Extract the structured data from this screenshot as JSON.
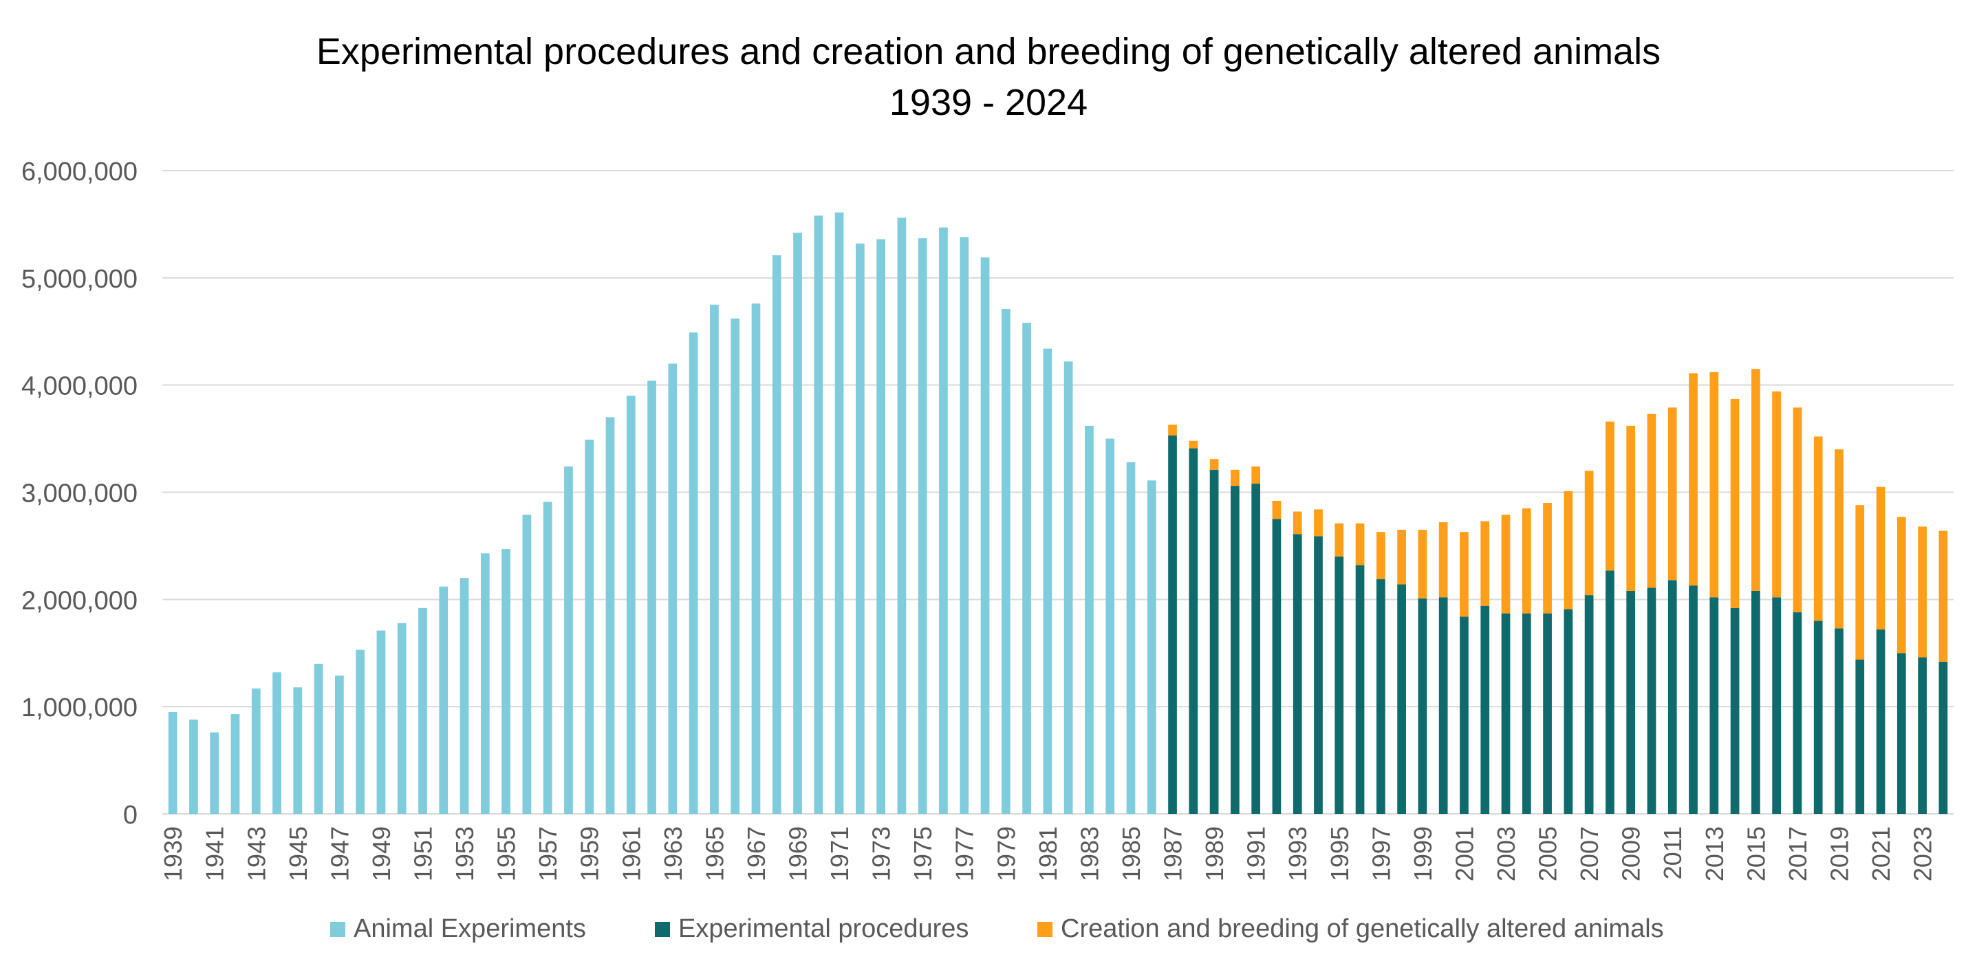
{
  "chart_data": {
    "type": "bar",
    "stacked": true,
    "title": "Experimental procedures and creation and breeding of genetically altered animals",
    "subtitle": "1939 - 2024",
    "xlabel": "",
    "ylabel": "",
    "ylim": [
      0,
      6000000
    ],
    "yticks": [
      0,
      1000000,
      2000000,
      3000000,
      4000000,
      5000000,
      6000000
    ],
    "ytick_labels": [
      "0",
      "1,000,000",
      "2,000,000",
      "3,000,000",
      "4,000,000",
      "5,000,000",
      "6,000,000"
    ],
    "grid": true,
    "legend_position": "bottom",
    "x": [
      1939,
      1940,
      1941,
      1942,
      1943,
      1944,
      1945,
      1946,
      1947,
      1948,
      1949,
      1950,
      1951,
      1952,
      1953,
      1954,
      1955,
      1956,
      1957,
      1958,
      1959,
      1960,
      1961,
      1962,
      1963,
      1964,
      1965,
      1966,
      1967,
      1968,
      1969,
      1970,
      1971,
      1972,
      1973,
      1974,
      1975,
      1976,
      1977,
      1978,
      1979,
      1980,
      1981,
      1982,
      1983,
      1984,
      1985,
      1986,
      1987,
      1988,
      1989,
      1990,
      1991,
      1992,
      1993,
      1994,
      1995,
      1996,
      1997,
      1998,
      1999,
      2000,
      2001,
      2002,
      2003,
      2004,
      2005,
      2006,
      2007,
      2008,
      2009,
      2010,
      2011,
      2012,
      2013,
      2014,
      2015,
      2016,
      2017,
      2018,
      2019,
      2020,
      2021,
      2022,
      2023,
      2024
    ],
    "x_tick_labels": [
      "1939",
      "1941",
      "1943",
      "1945",
      "1947",
      "1949",
      "1951",
      "1953",
      "1955",
      "1957",
      "1959",
      "1961",
      "1963",
      "1965",
      "1967",
      "1969",
      "1971",
      "1973",
      "1975",
      "1977",
      "1979",
      "1981",
      "1983",
      "1985",
      "1987",
      "1989",
      "1991",
      "1993",
      "1995",
      "1997",
      "1999",
      "2001",
      "2003",
      "2005",
      "2007",
      "2009",
      "2011",
      "2013",
      "2015",
      "2017",
      "2019",
      "2021",
      "2023"
    ],
    "series": [
      {
        "name": "Animal Experiments",
        "color": "#7FCCDC",
        "values": [
          950000,
          880000,
          760000,
          930000,
          1170000,
          1320000,
          1180000,
          1400000,
          1290000,
          1530000,
          1710000,
          1780000,
          1920000,
          2120000,
          2200000,
          2430000,
          2470000,
          2790000,
          2910000,
          3240000,
          3490000,
          3700000,
          3900000,
          4040000,
          4200000,
          4490000,
          4750000,
          4620000,
          4760000,
          5210000,
          5420000,
          5580000,
          5610000,
          5320000,
          5360000,
          5560000,
          5370000,
          5470000,
          5380000,
          5190000,
          4710000,
          4580000,
          4340000,
          4220000,
          3620000,
          3500000,
          3280000,
          3110000,
          0,
          0,
          0,
          0,
          0,
          0,
          0,
          0,
          0,
          0,
          0,
          0,
          0,
          0,
          0,
          0,
          0,
          0,
          0,
          0,
          0,
          0,
          0,
          0,
          0,
          0,
          0,
          0,
          0,
          0,
          0,
          0,
          0,
          0,
          0,
          0,
          0,
          0
        ]
      },
      {
        "name": "Experimental procedures",
        "color": "#0E6A6B",
        "values": [
          0,
          0,
          0,
          0,
          0,
          0,
          0,
          0,
          0,
          0,
          0,
          0,
          0,
          0,
          0,
          0,
          0,
          0,
          0,
          0,
          0,
          0,
          0,
          0,
          0,
          0,
          0,
          0,
          0,
          0,
          0,
          0,
          0,
          0,
          0,
          0,
          0,
          0,
          0,
          0,
          0,
          0,
          0,
          0,
          0,
          0,
          0,
          0,
          3530000,
          3410000,
          3210000,
          3060000,
          3080000,
          2750000,
          2610000,
          2590000,
          2400000,
          2320000,
          2190000,
          2140000,
          2010000,
          2020000,
          1840000,
          1940000,
          1870000,
          1870000,
          1870000,
          1910000,
          2040000,
          2270000,
          2080000,
          2110000,
          2180000,
          2130000,
          2020000,
          1920000,
          2080000,
          2020000,
          1880000,
          1800000,
          1730000,
          1440000,
          1720000,
          1500000,
          1460000,
          1420000
        ]
      },
      {
        "name": "Creation and breeding of genetically altered animals",
        "color": "#FF9E18",
        "values": [
          0,
          0,
          0,
          0,
          0,
          0,
          0,
          0,
          0,
          0,
          0,
          0,
          0,
          0,
          0,
          0,
          0,
          0,
          0,
          0,
          0,
          0,
          0,
          0,
          0,
          0,
          0,
          0,
          0,
          0,
          0,
          0,
          0,
          0,
          0,
          0,
          0,
          0,
          0,
          0,
          0,
          0,
          0,
          0,
          0,
          0,
          0,
          0,
          100000,
          70000,
          100000,
          150000,
          160000,
          170000,
          210000,
          250000,
          310000,
          390000,
          440000,
          510000,
          640000,
          700000,
          790000,
          790000,
          920000,
          980000,
          1030000,
          1100000,
          1160000,
          1390000,
          1540000,
          1620000,
          1610000,
          1980000,
          2100000,
          1950000,
          2070000,
          1920000,
          1910000,
          1720000,
          1670000,
          1440000,
          1330000,
          1270000,
          1220000,
          1220000
        ]
      }
    ]
  }
}
